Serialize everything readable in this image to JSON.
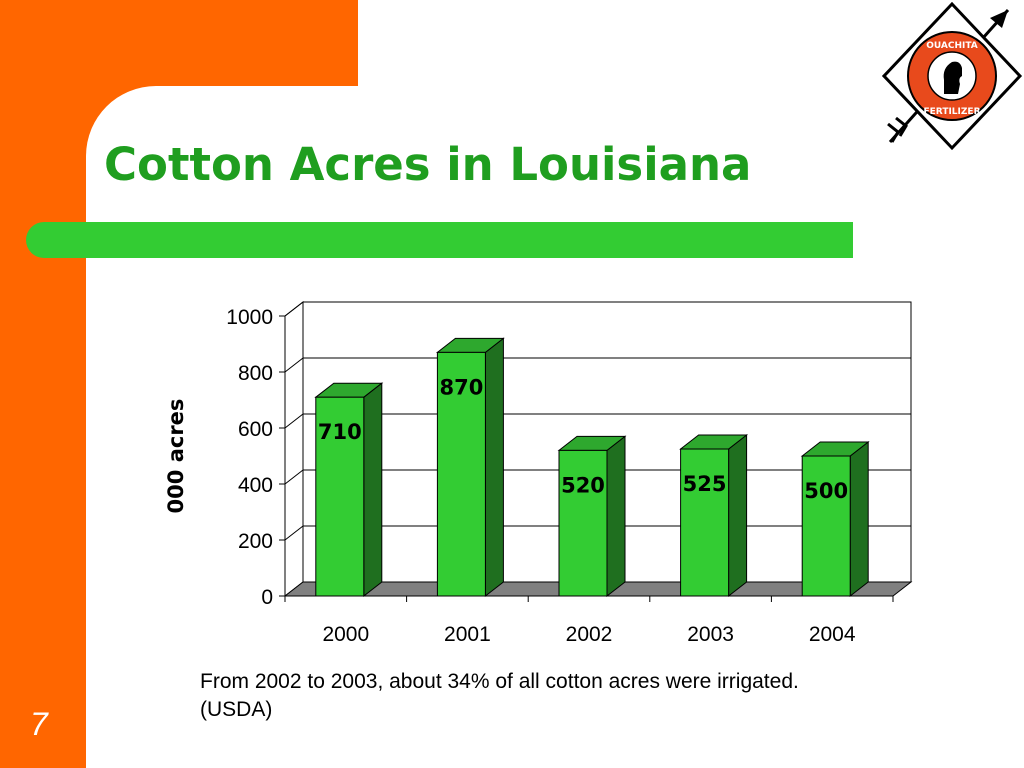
{
  "slide": {
    "title": "Cotton Acres in Louisiana",
    "page_number": "7",
    "caption": "From 2002 to 2003, about 34% of all cotton acres were irrigated. (USDA)"
  },
  "logo": {
    "text_top": "OUACHITA",
    "text_bottom": "FERTILIZER"
  },
  "colors": {
    "frame": "#ff6600",
    "title": "#1f9e1f",
    "underline": "#33cc33",
    "bar_front": "#33cc33",
    "bar_side": "#1f6f1f",
    "bar_top": "#2ea82e",
    "floor": "#808080"
  },
  "chart_data": {
    "type": "bar",
    "title": "",
    "xlabel": "",
    "ylabel": "000 acres",
    "categories": [
      "2000",
      "2001",
      "2002",
      "2003",
      "2004"
    ],
    "values": [
      710,
      870,
      520,
      525,
      500
    ],
    "data_labels": [
      "710",
      "870",
      "520",
      "525",
      "500"
    ],
    "ylim": [
      0,
      1000
    ],
    "yticks": [
      "0",
      "200",
      "400",
      "600",
      "800",
      "1000"
    ],
    "grid": true,
    "legend": "none",
    "three_d": true
  }
}
